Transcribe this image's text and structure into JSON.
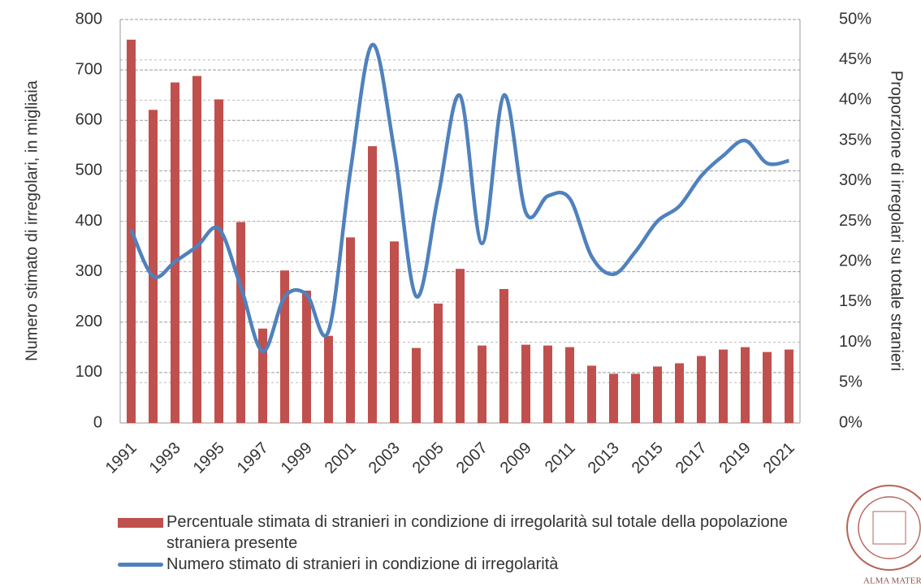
{
  "chart_data": {
    "type": "combo",
    "y_label": "Numero stimato di irregolari, in migliaia",
    "y2_label": "Proporzione di irregolari su totale stranieri",
    "categories": [
      "1991",
      null,
      "1993",
      null,
      "1995",
      null,
      "1997",
      null,
      "1999",
      null,
      "2001",
      null,
      "2003",
      null,
      "2005",
      null,
      "2007",
      null,
      "2009",
      null,
      "2011",
      null,
      "2013",
      null,
      "2015",
      null,
      "2017",
      null,
      "2019",
      null,
      "2021"
    ],
    "ylim": [
      0,
      800
    ],
    "yticks": [
      0,
      100,
      200,
      300,
      400,
      500,
      600,
      700,
      800
    ],
    "y2lim": [
      0,
      50
    ],
    "y2ticks": [
      {
        "value": 0,
        "label": "0%"
      },
      {
        "value": 5,
        "label": "5%"
      },
      {
        "value": 10,
        "label": "10%"
      },
      {
        "value": 15,
        "label": "15%"
      },
      {
        "value": 20,
        "label": "20%"
      },
      {
        "value": 25,
        "label": "25%"
      },
      {
        "value": 30,
        "label": "30%"
      },
      {
        "value": 35,
        "label": "35%"
      },
      {
        "value": 40,
        "label": "40%"
      },
      {
        "value": 45,
        "label": "45%"
      },
      {
        "value": 50,
        "label": "50%"
      }
    ],
    "grid": true,
    "series": [
      {
        "name": "Percentuale stimata di stranieri in condizione di irregolarità sul totale della popolazione straniera presente",
        "type": "bar",
        "axis": "y2",
        "color": "#c0504d",
        "values": [
          47.5,
          38.8,
          42.2,
          43,
          40.1,
          24.9,
          11.7,
          18.9,
          16.4,
          10.8,
          23,
          34.3,
          22.5,
          9.3,
          14.8,
          19.1,
          9.6,
          16.6,
          9.7,
          9.6,
          9.4,
          7.1,
          6.1,
          6.1,
          7,
          7.4,
          8.3,
          9.1,
          9.4,
          8.8,
          9.1
        ]
      },
      {
        "name": "Numero stimato di stranieri in condizione di irregolarità",
        "type": "line",
        "axis": "y",
        "color": "#4f81bd",
        "values": [
          383,
          291,
          320,
          350,
          385,
          270,
          142,
          250,
          255,
          182,
          500,
          750,
          540,
          251,
          450,
          649,
          356,
          650,
          417,
          450,
          445,
          330,
          295,
          340,
          400,
          430,
          490,
          530,
          560,
          515,
          520
        ]
      }
    ]
  },
  "logo": {
    "text": "ALMA MATER STU"
  }
}
